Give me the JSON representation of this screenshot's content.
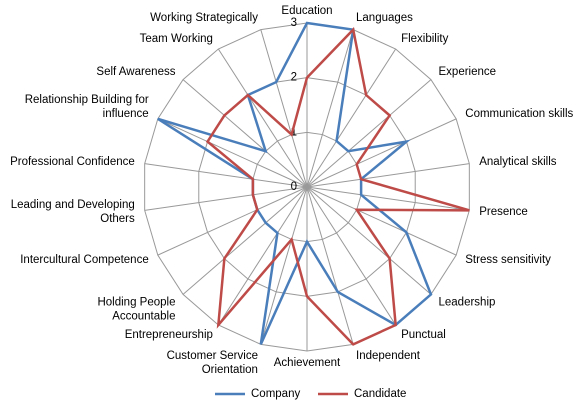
{
  "chart_data": {
    "type": "radar",
    "categories": [
      "Education",
      "Languages",
      "Flexibility",
      "Experience",
      "Communication skills",
      "Analytical skills",
      "Presence",
      "Stress sensitivity",
      "Leadership",
      "Punctual",
      "Independent",
      "Achievement",
      "Customer Service Orientation",
      "Entrepreneurship",
      "Holding People Accountable",
      "Intercultural Competence",
      "Leading and Developing Others",
      "Professional Confidence",
      "Relationship Building for influence",
      "Self Awareness",
      "Team Working",
      "Working Strategically"
    ],
    "series": [
      {
        "name": "Company",
        "color": "#4a7ebb",
        "values": [
          3,
          3,
          1,
          1,
          2,
          1,
          1,
          2,
          3,
          3,
          2,
          1,
          3,
          1,
          1,
          1,
          1,
          1,
          3,
          1,
          2,
          2
        ]
      },
      {
        "name": "Candidate",
        "color": "#be4b48",
        "values": [
          2,
          3,
          2,
          2,
          1,
          1,
          3,
          1,
          2,
          3,
          3,
          2,
          1,
          3,
          2,
          1,
          1,
          1,
          2,
          2,
          2,
          1
        ]
      }
    ],
    "ylim": [
      0,
      3
    ],
    "yticks": [
      0,
      1,
      2,
      3
    ],
    "grid": true
  }
}
